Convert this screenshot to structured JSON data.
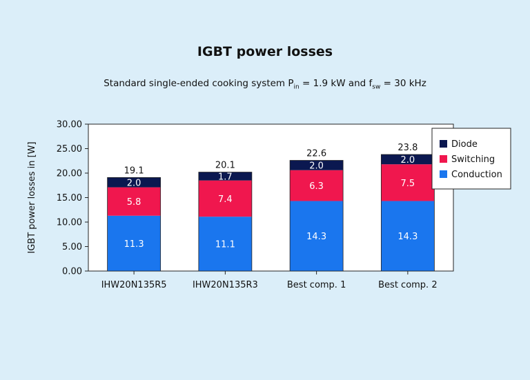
{
  "chart_data": {
    "type": "bar",
    "stacked": true,
    "title": "IGBT power losses",
    "subtitle": {
      "text1": "Standard single-ended cooking system P",
      "sub1": "in",
      "text2": " = 1.9 kW and f",
      "sub2": "sw",
      "text3": " = 30 kHz"
    },
    "ylabel": "IGBT power losses in [W]",
    "ylim": [
      0,
      30
    ],
    "yticks": [
      "0.00",
      "5.00",
      "10.00",
      "15.00",
      "20.00",
      "25.00",
      "30.00"
    ],
    "ytick_values": [
      0,
      5,
      10,
      15,
      20,
      25,
      30
    ],
    "categories": [
      "IHW20N135R5",
      "IHW20N135R3",
      "Best comp. 1",
      "Best comp. 2"
    ],
    "series": [
      {
        "name": "Conduction",
        "values": [
          11.3,
          11.1,
          14.3,
          14.3
        ],
        "labels": [
          "11.3",
          "11.1",
          "14.3",
          "14.3"
        ],
        "color": "#1a76ee"
      },
      {
        "name": "Switching",
        "values": [
          5.8,
          7.4,
          6.3,
          7.5
        ],
        "labels": [
          "5.8",
          "7.4",
          "6.3",
          "7.5"
        ],
        "color": "#f0174e"
      },
      {
        "name": "Diode",
        "values": [
          2.0,
          1.7,
          2.0,
          2.0
        ],
        "labels": [
          "2.0",
          "1.7",
          "2.0",
          "2.0"
        ],
        "color": "#0b1850"
      }
    ],
    "totals": [
      "19.1",
      "20.1",
      "22.6",
      "23.8"
    ],
    "legend_order": [
      "Diode",
      "Switching",
      "Conduction"
    ],
    "legend_position": "top-right",
    "grid": false
  }
}
